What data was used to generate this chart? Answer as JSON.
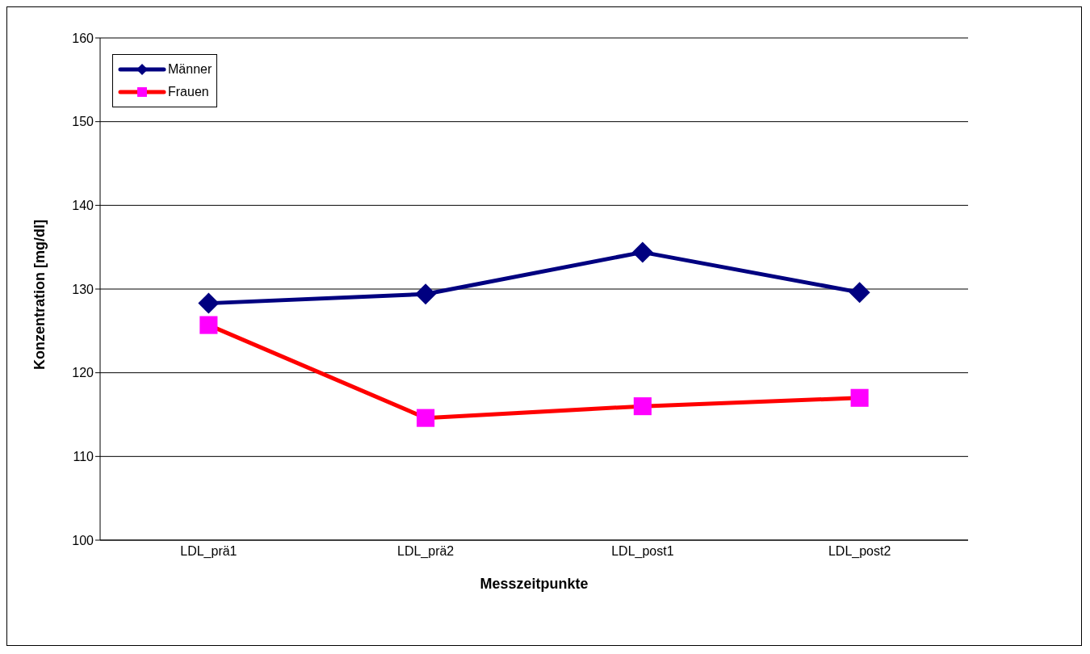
{
  "chart_data": {
    "type": "line",
    "xlabel": "Messzeitpunkte",
    "ylabel": "Konzentration [mg/dl]",
    "categories": [
      "LDL_prä1",
      "LDL_prä2",
      "LDL_post1",
      "LDL_post2"
    ],
    "series": [
      {
        "name": "Männer",
        "color": "#000080",
        "marker": "diamond",
        "values": [
          128.3,
          129.4,
          134.4,
          129.6
        ]
      },
      {
        "name": "Frauen",
        "color": "#ff0000",
        "marker": "square",
        "colors": [
          "#ff00ff",
          "#ff00ff",
          "#ff00ff",
          "#ff00ff"
        ],
        "values": [
          125.7,
          114.6,
          116.0,
          117.0
        ]
      }
    ],
    "ylim": [
      100,
      160
    ],
    "yticks": [
      100,
      110,
      120,
      130,
      140,
      150,
      160
    ],
    "grid": "y",
    "legend": "top left",
    "line_style": "solid"
  }
}
